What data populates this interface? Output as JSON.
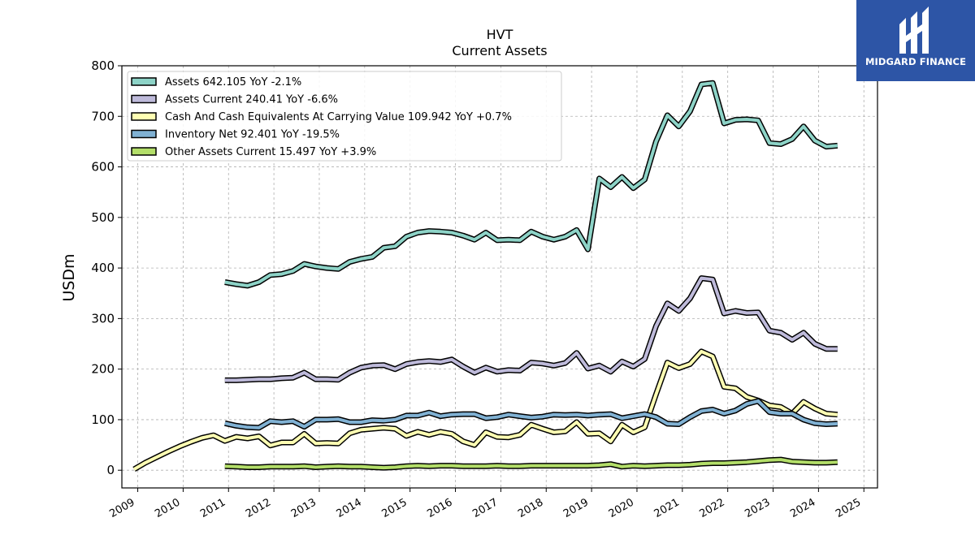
{
  "brand": {
    "name": "MIDGARD FINANCE",
    "bg_color": "#2d55a6"
  },
  "chart_data": {
    "type": "line",
    "title": "HVT",
    "subtitle": "Current  Assets",
    "xlabel": "",
    "ylabel": "USDm",
    "xlim": [
      2008.65,
      2025.3
    ],
    "ylim": [
      -35,
      800
    ],
    "x_ticks": [
      2009,
      2010,
      2011,
      2012,
      2013,
      2014,
      2015,
      2016,
      2017,
      2018,
      2019,
      2020,
      2021,
      2022,
      2023,
      2024,
      2025
    ],
    "y_ticks": [
      0,
      100,
      200,
      300,
      400,
      500,
      600,
      700,
      800
    ],
    "grid": true,
    "legend_position": "top-left",
    "series": [
      {
        "name": "Assets",
        "legend": "Assets  642.105 YoY -2.1%",
        "color": "#8dd3c7",
        "points": [
          [
            2010.92,
            372
          ],
          [
            2011.17,
            368
          ],
          [
            2011.42,
            365
          ],
          [
            2011.67,
            372
          ],
          [
            2011.92,
            386
          ],
          [
            2012.17,
            388
          ],
          [
            2012.42,
            394
          ],
          [
            2012.67,
            408
          ],
          [
            2012.92,
            403
          ],
          [
            2013.17,
            400
          ],
          [
            2013.42,
            398
          ],
          [
            2013.67,
            412
          ],
          [
            2013.92,
            418
          ],
          [
            2014.17,
            422
          ],
          [
            2014.42,
            440
          ],
          [
            2014.67,
            443
          ],
          [
            2014.92,
            462
          ],
          [
            2015.17,
            470
          ],
          [
            2015.42,
            473
          ],
          [
            2015.67,
            472
          ],
          [
            2015.92,
            470
          ],
          [
            2016.17,
            464
          ],
          [
            2016.42,
            456
          ],
          [
            2016.67,
            470
          ],
          [
            2016.92,
            455
          ],
          [
            2017.17,
            456
          ],
          [
            2017.42,
            455
          ],
          [
            2017.67,
            472
          ],
          [
            2017.92,
            462
          ],
          [
            2018.17,
            456
          ],
          [
            2018.42,
            462
          ],
          [
            2018.67,
            475
          ],
          [
            2018.92,
            437
          ],
          [
            2019.17,
            577
          ],
          [
            2019.42,
            560
          ],
          [
            2019.67,
            580
          ],
          [
            2019.92,
            558
          ],
          [
            2020.17,
            575
          ],
          [
            2020.42,
            650
          ],
          [
            2020.67,
            702
          ],
          [
            2020.92,
            680
          ],
          [
            2021.17,
            710
          ],
          [
            2021.42,
            763
          ],
          [
            2021.67,
            766
          ],
          [
            2021.92,
            686
          ],
          [
            2022.17,
            693
          ],
          [
            2022.42,
            694
          ],
          [
            2022.67,
            692
          ],
          [
            2022.92,
            647
          ],
          [
            2023.17,
            645
          ],
          [
            2023.42,
            655
          ],
          [
            2023.67,
            680
          ],
          [
            2023.92,
            652
          ],
          [
            2024.17,
            640
          ],
          [
            2024.42,
            642
          ]
        ]
      },
      {
        "name": "Assets Current",
        "legend": "Assets Current  240.41 YoY -6.6%",
        "color": "#bebada",
        "points": [
          [
            2010.92,
            178
          ],
          [
            2011.17,
            178
          ],
          [
            2011.42,
            179
          ],
          [
            2011.67,
            180
          ],
          [
            2011.92,
            180
          ],
          [
            2012.17,
            182
          ],
          [
            2012.42,
            183
          ],
          [
            2012.67,
            193
          ],
          [
            2012.92,
            180
          ],
          [
            2013.17,
            180
          ],
          [
            2013.42,
            179
          ],
          [
            2013.67,
            193
          ],
          [
            2013.92,
            203
          ],
          [
            2014.17,
            207
          ],
          [
            2014.42,
            208
          ],
          [
            2014.67,
            200
          ],
          [
            2014.92,
            210
          ],
          [
            2015.17,
            214
          ],
          [
            2015.42,
            216
          ],
          [
            2015.67,
            214
          ],
          [
            2015.92,
            219
          ],
          [
            2016.17,
            205
          ],
          [
            2016.42,
            193
          ],
          [
            2016.67,
            203
          ],
          [
            2016.92,
            195
          ],
          [
            2017.17,
            198
          ],
          [
            2017.42,
            197
          ],
          [
            2017.67,
            213
          ],
          [
            2017.92,
            211
          ],
          [
            2018.17,
            207
          ],
          [
            2018.42,
            212
          ],
          [
            2018.67,
            232
          ],
          [
            2018.92,
            201
          ],
          [
            2019.17,
            207
          ],
          [
            2019.42,
            195
          ],
          [
            2019.67,
            215
          ],
          [
            2019.92,
            205
          ],
          [
            2020.17,
            220
          ],
          [
            2020.42,
            285
          ],
          [
            2020.67,
            330
          ],
          [
            2020.92,
            315
          ],
          [
            2021.17,
            340
          ],
          [
            2021.42,
            380
          ],
          [
            2021.67,
            377
          ],
          [
            2021.92,
            310
          ],
          [
            2022.17,
            315
          ],
          [
            2022.42,
            311
          ],
          [
            2022.67,
            312
          ],
          [
            2022.92,
            276
          ],
          [
            2023.17,
            272
          ],
          [
            2023.42,
            258
          ],
          [
            2023.67,
            272
          ],
          [
            2023.92,
            250
          ],
          [
            2024.17,
            240
          ],
          [
            2024.42,
            240
          ]
        ]
      },
      {
        "name": "Cash And Cash Equivalents At Carrying Value",
        "legend": "Cash And Cash Equivalents At Carrying Value  109.942 YoY +0.7%",
        "color": "#ffffb3",
        "points": [
          [
            2008.92,
            2
          ],
          [
            2009.17,
            15
          ],
          [
            2009.42,
            26
          ],
          [
            2009.67,
            37
          ],
          [
            2009.92,
            47
          ],
          [
            2010.17,
            56
          ],
          [
            2010.42,
            64
          ],
          [
            2010.67,
            69
          ],
          [
            2010.92,
            58
          ],
          [
            2011.17,
            66
          ],
          [
            2011.42,
            63
          ],
          [
            2011.67,
            67
          ],
          [
            2011.92,
            49
          ],
          [
            2012.17,
            55
          ],
          [
            2012.42,
            55
          ],
          [
            2012.67,
            72
          ],
          [
            2012.92,
            53
          ],
          [
            2013.17,
            54
          ],
          [
            2013.42,
            53
          ],
          [
            2013.67,
            73
          ],
          [
            2013.92,
            80
          ],
          [
            2014.17,
            82
          ],
          [
            2014.42,
            84
          ],
          [
            2014.67,
            82
          ],
          [
            2014.92,
            68
          ],
          [
            2015.17,
            76
          ],
          [
            2015.42,
            70
          ],
          [
            2015.67,
            76
          ],
          [
            2015.92,
            72
          ],
          [
            2016.17,
            57
          ],
          [
            2016.42,
            50
          ],
          [
            2016.67,
            75
          ],
          [
            2016.92,
            66
          ],
          [
            2017.17,
            65
          ],
          [
            2017.42,
            70
          ],
          [
            2017.67,
            90
          ],
          [
            2017.92,
            82
          ],
          [
            2018.17,
            75
          ],
          [
            2018.42,
            77
          ],
          [
            2018.67,
            95
          ],
          [
            2018.92,
            72
          ],
          [
            2019.17,
            73
          ],
          [
            2019.42,
            57
          ],
          [
            2019.67,
            90
          ],
          [
            2019.92,
            75
          ],
          [
            2020.17,
            85
          ],
          [
            2020.42,
            150
          ],
          [
            2020.67,
            213
          ],
          [
            2020.92,
            202
          ],
          [
            2021.17,
            210
          ],
          [
            2021.42,
            235
          ],
          [
            2021.67,
            225
          ],
          [
            2021.92,
            165
          ],
          [
            2022.17,
            162
          ],
          [
            2022.42,
            145
          ],
          [
            2022.67,
            138
          ],
          [
            2022.92,
            128
          ],
          [
            2023.17,
            125
          ],
          [
            2023.42,
            112
          ],
          [
            2023.67,
            135
          ],
          [
            2023.92,
            122
          ],
          [
            2024.17,
            112
          ],
          [
            2024.42,
            110
          ]
        ]
      },
      {
        "name": "Inventory Net",
        "legend": "Inventory Net  92.401 YoY -19.5%",
        "color": "#80b1d3",
        "points": [
          [
            2010.92,
            93
          ],
          [
            2011.17,
            88
          ],
          [
            2011.42,
            85
          ],
          [
            2011.67,
            84
          ],
          [
            2011.92,
            97
          ],
          [
            2012.17,
            95
          ],
          [
            2012.42,
            97
          ],
          [
            2012.67,
            86
          ],
          [
            2012.92,
            100
          ],
          [
            2013.17,
            100
          ],
          [
            2013.42,
            101
          ],
          [
            2013.67,
            95
          ],
          [
            2013.92,
            95
          ],
          [
            2014.17,
            99
          ],
          [
            2014.42,
            98
          ],
          [
            2014.67,
            100
          ],
          [
            2014.92,
            108
          ],
          [
            2015.17,
            108
          ],
          [
            2015.42,
            114
          ],
          [
            2015.67,
            107
          ],
          [
            2015.92,
            110
          ],
          [
            2016.17,
            111
          ],
          [
            2016.42,
            111
          ],
          [
            2016.67,
            103
          ],
          [
            2016.92,
            105
          ],
          [
            2017.17,
            110
          ],
          [
            2017.42,
            107
          ],
          [
            2017.67,
            104
          ],
          [
            2017.92,
            106
          ],
          [
            2018.17,
            110
          ],
          [
            2018.42,
            109
          ],
          [
            2018.67,
            110
          ],
          [
            2018.92,
            108
          ],
          [
            2019.17,
            110
          ],
          [
            2019.42,
            111
          ],
          [
            2019.67,
            103
          ],
          [
            2019.92,
            107
          ],
          [
            2020.17,
            111
          ],
          [
            2020.42,
            105
          ],
          [
            2020.67,
            92
          ],
          [
            2020.92,
            91
          ],
          [
            2021.17,
            105
          ],
          [
            2021.42,
            117
          ],
          [
            2021.67,
            120
          ],
          [
            2021.92,
            112
          ],
          [
            2022.17,
            118
          ],
          [
            2022.42,
            131
          ],
          [
            2022.67,
            137
          ],
          [
            2022.92,
            115
          ],
          [
            2023.17,
            112
          ],
          [
            2023.42,
            112
          ],
          [
            2023.67,
            100
          ],
          [
            2023.92,
            93
          ],
          [
            2024.17,
            91
          ],
          [
            2024.42,
            92
          ]
        ]
      },
      {
        "name": "Other Assets Current",
        "legend": "Other Assets Current  15.497 YoY +3.9%",
        "color": "#b3de69",
        "points": [
          [
            2010.92,
            8
          ],
          [
            2011.17,
            7
          ],
          [
            2011.42,
            6
          ],
          [
            2011.67,
            6
          ],
          [
            2011.92,
            7
          ],
          [
            2012.17,
            7
          ],
          [
            2012.42,
            7
          ],
          [
            2012.67,
            8
          ],
          [
            2012.92,
            6
          ],
          [
            2013.17,
            7
          ],
          [
            2013.42,
            8
          ],
          [
            2013.67,
            7
          ],
          [
            2013.92,
            7
          ],
          [
            2014.17,
            6
          ],
          [
            2014.42,
            5
          ],
          [
            2014.67,
            6
          ],
          [
            2014.92,
            8
          ],
          [
            2015.17,
            9
          ],
          [
            2015.42,
            8
          ],
          [
            2015.67,
            9
          ],
          [
            2015.92,
            9
          ],
          [
            2016.17,
            8
          ],
          [
            2016.42,
            8
          ],
          [
            2016.67,
            8
          ],
          [
            2016.92,
            9
          ],
          [
            2017.17,
            8
          ],
          [
            2017.42,
            8
          ],
          [
            2017.67,
            9
          ],
          [
            2017.92,
            9
          ],
          [
            2018.17,
            9
          ],
          [
            2018.42,
            9
          ],
          [
            2018.67,
            9
          ],
          [
            2018.92,
            9
          ],
          [
            2019.17,
            10
          ],
          [
            2019.42,
            12
          ],
          [
            2019.67,
            7
          ],
          [
            2019.92,
            9
          ],
          [
            2020.17,
            8
          ],
          [
            2020.42,
            9
          ],
          [
            2020.67,
            10
          ],
          [
            2020.92,
            10
          ],
          [
            2021.17,
            11
          ],
          [
            2021.42,
            13
          ],
          [
            2021.67,
            14
          ],
          [
            2021.92,
            14
          ],
          [
            2022.17,
            15
          ],
          [
            2022.42,
            16
          ],
          [
            2022.67,
            18
          ],
          [
            2022.92,
            20
          ],
          [
            2023.17,
            21
          ],
          [
            2023.42,
            17
          ],
          [
            2023.67,
            16
          ],
          [
            2023.92,
            15
          ],
          [
            2024.17,
            15
          ],
          [
            2024.42,
            16
          ]
        ]
      }
    ]
  }
}
